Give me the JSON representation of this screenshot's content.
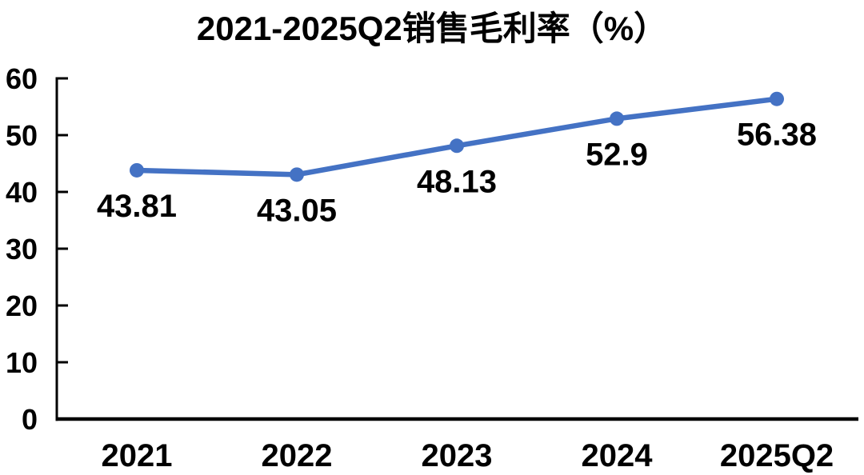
{
  "chart_data": {
    "type": "line",
    "title": "2021-2025Q2销售毛利率（%）",
    "categories": [
      "2021",
      "2022",
      "2023",
      "2024",
      "2025Q2"
    ],
    "values": [
      43.81,
      43.05,
      48.13,
      52.9,
      56.38
    ],
    "data_labels": [
      "43.81",
      "43.05",
      "48.13",
      "52.9",
      "56.38"
    ],
    "xlabel": "",
    "ylabel": "",
    "ylim": [
      0,
      60
    ],
    "yticks": [
      0,
      10,
      20,
      30,
      40,
      50,
      60
    ],
    "grid": false,
    "legend": "none",
    "colors": {
      "line": "#4472C4",
      "marker": "#4472C4",
      "axis": "#000000",
      "text": "#000000",
      "background": "#FFFFFF"
    }
  }
}
